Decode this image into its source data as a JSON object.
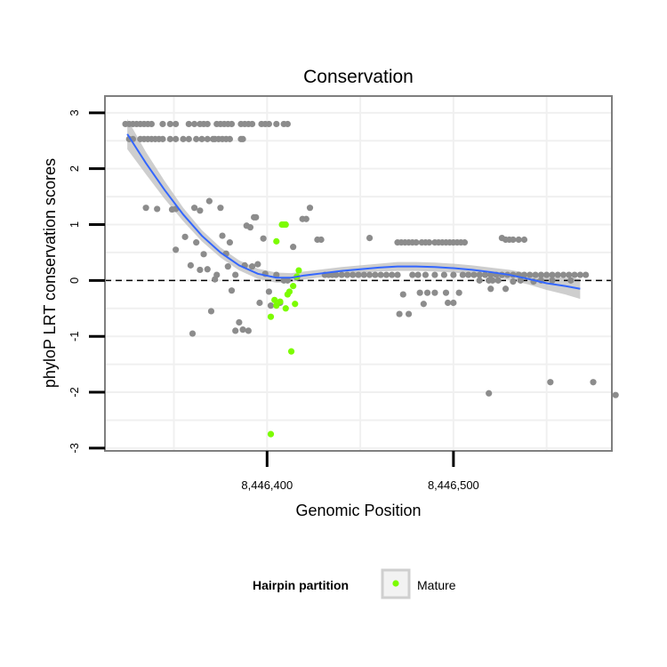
{
  "chart_data": {
    "type": "scatter",
    "title": "Conservation",
    "xlabel": "Genomic Position",
    "ylabel": "phyloP LRT conservation scores",
    "xlim": [
      8446313,
      8446585
    ],
    "ylim": [
      -3.05,
      3.3
    ],
    "x_ticks": [
      8446400,
      8446500
    ],
    "x_tick_labels": [
      "8,446,400",
      "8,446,500"
    ],
    "y_ticks": [
      -3,
      -2,
      -1,
      0,
      1,
      2,
      3
    ],
    "y_tick_labels": [
      "-3",
      "-2",
      "-1",
      "0",
      "1",
      "2",
      "3"
    ],
    "reference_line_y": 0,
    "grid": true,
    "legend": {
      "position": "bottom",
      "title": "Hairpin partition",
      "entries": [
        {
          "label": "Mature",
          "color": "#7cfc00"
        }
      ]
    },
    "colors": {
      "background_points": "#8c8c8c",
      "mature_points": "#7cfc00",
      "smooth_line": "#3366ff",
      "confidence_band": "#bdbdbd",
      "panel_border": "#7f7f7f",
      "grid": "#f0f0f0"
    },
    "series": [
      {
        "values": [
          [
            8446324,
            2.8
          ],
          [
            8446326,
            2.8
          ],
          [
            8446328,
            2.8
          ],
          [
            8446330,
            2.8
          ],
          [
            8446332,
            2.8
          ],
          [
            8446334,
            2.8
          ],
          [
            8446336,
            2.8
          ],
          [
            8446338,
            2.8
          ],
          [
            8446344,
            2.8
          ],
          [
            8446348,
            2.8
          ],
          [
            8446351,
            2.8
          ],
          [
            8446358,
            2.8
          ],
          [
            8446361,
            2.8
          ],
          [
            8446364,
            2.8
          ],
          [
            8446366,
            2.8
          ],
          [
            8446368,
            2.8
          ],
          [
            8446373,
            2.8
          ],
          [
            8446375,
            2.8
          ],
          [
            8446377,
            2.8
          ],
          [
            8446379,
            2.8
          ],
          [
            8446381,
            2.8
          ],
          [
            8446386,
            2.8
          ],
          [
            8446388,
            2.8
          ],
          [
            8446390,
            2.8
          ],
          [
            8446392,
            2.8
          ],
          [
            8446397,
            2.8
          ],
          [
            8446399,
            2.8
          ],
          [
            8446401,
            2.8
          ],
          [
            8446405,
            2.8
          ],
          [
            8446409,
            2.8
          ],
          [
            8446411,
            2.8
          ],
          [
            8446326,
            2.53
          ],
          [
            8446328,
            2.53
          ],
          [
            8446332,
            2.53
          ],
          [
            8446334,
            2.53
          ],
          [
            8446336,
            2.53
          ],
          [
            8446338,
            2.53
          ],
          [
            8446340,
            2.53
          ],
          [
            8446342,
            2.53
          ],
          [
            8446344,
            2.53
          ],
          [
            8446348,
            2.53
          ],
          [
            8446351,
            2.53
          ],
          [
            8446355,
            2.53
          ],
          [
            8446358,
            2.53
          ],
          [
            8446362,
            2.53
          ],
          [
            8446365,
            2.53
          ],
          [
            8446368,
            2.53
          ],
          [
            8446371,
            2.53
          ],
          [
            8446372,
            2.53
          ],
          [
            8446374,
            2.53
          ],
          [
            8446376,
            2.53
          ],
          [
            8446378,
            2.53
          ],
          [
            8446380,
            2.53
          ],
          [
            8446386,
            2.53
          ],
          [
            8446387,
            2.53
          ],
          [
            8446335,
            1.3
          ],
          [
            8446341,
            1.28
          ],
          [
            8446349,
            1.27
          ],
          [
            8446351,
            0.55
          ],
          [
            8446351,
            1.28
          ],
          [
            8446356,
            0.78
          ],
          [
            8446359,
            0.27
          ],
          [
            8446361,
            1.3
          ],
          [
            8446360,
            -0.95
          ],
          [
            8446362,
            0.68
          ],
          [
            8446364,
            1.25
          ],
          [
            8446364,
            0.19
          ],
          [
            8446366,
            0.47
          ],
          [
            8446368,
            0.2
          ],
          [
            8446369,
            1.42
          ],
          [
            8446370,
            -0.55
          ],
          [
            8446372,
            0.02
          ],
          [
            8446373,
            0.1
          ],
          [
            8446375,
            1.3
          ],
          [
            8446376,
            0.8
          ],
          [
            8446378,
            0.48
          ],
          [
            8446379,
            0.25
          ],
          [
            8446380,
            0.68
          ],
          [
            8446381,
            -0.18
          ],
          [
            8446383,
            0.1
          ],
          [
            8446383,
            -0.9
          ],
          [
            8446385,
            -0.75
          ],
          [
            8446387,
            -0.88
          ],
          [
            8446388,
            0.27
          ],
          [
            8446389,
            0.98
          ],
          [
            8446390,
            -0.9
          ],
          [
            8446391,
            0.95
          ],
          [
            8446392,
            0.25
          ],
          [
            8446393,
            1.13
          ],
          [
            8446394,
            1.13
          ],
          [
            8446395,
            0.29
          ],
          [
            8446396,
            -0.4
          ],
          [
            8446398,
            0.75
          ],
          [
            8446399,
            0.12
          ],
          [
            8446401,
            -0.2
          ],
          [
            8446402,
            -0.45
          ],
          [
            8446405,
            0.1
          ],
          [
            8446407,
            -0.4
          ],
          [
            8446409,
            0.0
          ],
          [
            8446411,
            0.0
          ],
          [
            8446414,
            0.6
          ],
          [
            8446416,
            0.05
          ],
          [
            8446419,
            1.1
          ],
          [
            8446421,
            1.1
          ],
          [
            8446423,
            1.3
          ],
          [
            8446427,
            0.73
          ],
          [
            8446429,
            0.73
          ],
          [
            8446431,
            0.1
          ],
          [
            8446433,
            0.1
          ],
          [
            8446435,
            0.1
          ],
          [
            8446437,
            0.1
          ],
          [
            8446440,
            0.1
          ],
          [
            8446443,
            0.1
          ],
          [
            8446446,
            0.1
          ],
          [
            8446449,
            0.1
          ],
          [
            8446452,
            0.1
          ],
          [
            8446455,
            0.1
          ],
          [
            8446458,
            0.1
          ],
          [
            8446461,
            0.1
          ],
          [
            8446464,
            0.1
          ],
          [
            8446467,
            0.1
          ],
          [
            8446470,
            0.1
          ],
          [
            8446455,
            0.76
          ],
          [
            8446471,
            -0.6
          ],
          [
            8446473,
            -0.25
          ],
          [
            8446476,
            -0.6
          ],
          [
            8446470,
            0.68
          ],
          [
            8446472,
            0.68
          ],
          [
            8446474,
            0.68
          ],
          [
            8446476,
            0.68
          ],
          [
            8446478,
            0.68
          ],
          [
            8446480,
            0.68
          ],
          [
            8446483,
            0.68
          ],
          [
            8446485,
            0.68
          ],
          [
            8446487,
            0.68
          ],
          [
            8446490,
            0.68
          ],
          [
            8446492,
            0.68
          ],
          [
            8446494,
            0.68
          ],
          [
            8446496,
            0.68
          ],
          [
            8446498,
            0.68
          ],
          [
            8446500,
            0.68
          ],
          [
            8446502,
            0.68
          ],
          [
            8446504,
            0.68
          ],
          [
            8446506,
            0.68
          ],
          [
            8446482,
            -0.22
          ],
          [
            8446484,
            -0.42
          ],
          [
            8446486,
            -0.22
          ],
          [
            8446490,
            -0.22
          ],
          [
            8446496,
            -0.22
          ],
          [
            8446497,
            -0.4
          ],
          [
            8446500,
            -0.4
          ],
          [
            8446503,
            -0.22
          ],
          [
            8446478,
            0.1
          ],
          [
            8446481,
            0.1
          ],
          [
            8446485,
            0.1
          ],
          [
            8446490,
            0.1
          ],
          [
            8446495,
            0.1
          ],
          [
            8446500,
            0.1
          ],
          [
            8446505,
            0.1
          ],
          [
            8446508,
            0.1
          ],
          [
            8446511,
            0.1
          ],
          [
            8446514,
            0.1
          ],
          [
            8446517,
            0.1
          ],
          [
            8446520,
            0.1
          ],
          [
            8446523,
            0.1
          ],
          [
            8446526,
            0.1
          ],
          [
            8446529,
            0.1
          ],
          [
            8446532,
            0.1
          ],
          [
            8446535,
            0.1
          ],
          [
            8446538,
            0.1
          ],
          [
            8446541,
            0.1
          ],
          [
            8446544,
            0.1
          ],
          [
            8446547,
            0.1
          ],
          [
            8446550,
            0.1
          ],
          [
            8446553,
            0.1
          ],
          [
            8446556,
            0.1
          ],
          [
            8446559,
            0.1
          ],
          [
            8446562,
            0.1
          ],
          [
            8446565,
            0.1
          ],
          [
            8446568,
            0.1
          ],
          [
            8446571,
            0.1
          ],
          [
            8446514,
            0.0
          ],
          [
            8446519,
            0.0
          ],
          [
            8446521,
            0.0
          ],
          [
            8446524,
            0.0
          ],
          [
            8446536,
            0.0
          ],
          [
            8446547,
            0.0
          ],
          [
            8446553,
            0.0
          ],
          [
            8446563,
            0.0
          ],
          [
            8446520,
            -0.15
          ],
          [
            8446528,
            -0.15
          ],
          [
            8446532,
            -0.02
          ],
          [
            8446543,
            -0.02
          ],
          [
            8446526,
            0.76
          ],
          [
            8446528,
            0.73
          ],
          [
            8446530,
            0.73
          ],
          [
            8446532,
            0.73
          ],
          [
            8446535,
            0.73
          ],
          [
            8446538,
            0.73
          ],
          [
            8446519,
            -2.02
          ],
          [
            8446552,
            -1.82
          ],
          [
            8446575,
            -1.82
          ],
          [
            8446587,
            -2.05
          ]
        ]
      },
      {
        "name": "Mature",
        "values": [
          [
            8446402,
            -2.75
          ],
          [
            8446402,
            -0.65
          ],
          [
            8446404,
            -0.35
          ],
          [
            8446405,
            -0.45
          ],
          [
            8446405,
            0.7
          ],
          [
            8446407,
            -0.38
          ],
          [
            8446408,
            1.0
          ],
          [
            8446409,
            1.0
          ],
          [
            8446410,
            1.0
          ],
          [
            8446410,
            -0.5
          ],
          [
            8446411,
            -0.25
          ],
          [
            8446412,
            -0.2
          ],
          [
            8446413,
            -1.27
          ],
          [
            8446414,
            -0.1
          ],
          [
            8446415,
            -0.42
          ],
          [
            8446416,
            0.07
          ],
          [
            8446417,
            0.18
          ]
        ]
      }
    ],
    "smooth": [
      [
        8446325,
        2.62
      ],
      [
        8446335,
        2.1
      ],
      [
        8446345,
        1.62
      ],
      [
        8446355,
        1.18
      ],
      [
        8446365,
        0.8
      ],
      [
        8446375,
        0.5
      ],
      [
        8446385,
        0.27
      ],
      [
        8446395,
        0.12
      ],
      [
        8446405,
        0.05
      ],
      [
        8446413,
        0.05
      ],
      [
        8446420,
        0.09
      ],
      [
        8446430,
        0.13
      ],
      [
        8446440,
        0.17
      ],
      [
        8446450,
        0.2
      ],
      [
        8446460,
        0.23
      ],
      [
        8446470,
        0.25
      ],
      [
        8446480,
        0.25
      ],
      [
        8446490,
        0.24
      ],
      [
        8446500,
        0.22
      ],
      [
        8446510,
        0.19
      ],
      [
        8446520,
        0.15
      ],
      [
        8446530,
        0.1
      ],
      [
        8446540,
        0.03
      ],
      [
        8446550,
        -0.05
      ],
      [
        8446560,
        -0.1
      ],
      [
        8446568,
        -0.15
      ]
    ],
    "confidence_band_halfwidth": [
      0.27,
      0.2,
      0.16,
      0.12,
      0.1,
      0.09,
      0.09,
      0.09,
      0.09,
      0.08,
      0.07,
      0.07,
      0.07,
      0.07,
      0.07,
      0.08,
      0.08,
      0.08,
      0.08,
      0.08,
      0.08,
      0.09,
      0.1,
      0.12,
      0.15,
      0.18
    ]
  }
}
